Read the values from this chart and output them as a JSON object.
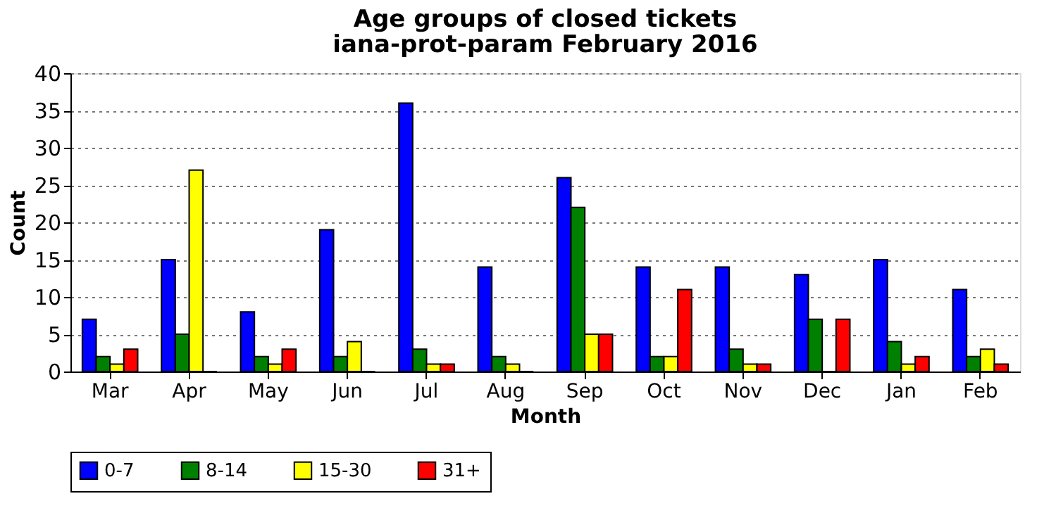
{
  "chart_data": {
    "type": "bar",
    "title": "Age groups of closed tickets",
    "subtitle": "iana-prot-param February 2016",
    "xlabel": "Month",
    "ylabel": "Count",
    "categories": [
      "Mar",
      "Apr",
      "May",
      "Jun",
      "Jul",
      "Aug",
      "Sep",
      "Oct",
      "Nov",
      "Dec",
      "Jan",
      "Feb"
    ],
    "series": [
      {
        "name": "0-7",
        "color": "#0000ff",
        "values": [
          7,
          15,
          8,
          19,
          36,
          14,
          26,
          14,
          14,
          13,
          15,
          11
        ]
      },
      {
        "name": "8-14",
        "color": "#008000",
        "values": [
          2,
          5,
          2,
          2,
          3,
          2,
          22,
          2,
          3,
          7,
          4,
          2
        ]
      },
      {
        "name": "15-30",
        "color": "#ffff00",
        "values": [
          1,
          27,
          1,
          4,
          1,
          1,
          5,
          2,
          1,
          0,
          1,
          3
        ]
      },
      {
        "name": "31+",
        "color": "#ff0000",
        "values": [
          3,
          0,
          3,
          0,
          1,
          0,
          5,
          11,
          1,
          7,
          2,
          1
        ]
      }
    ],
    "ylim": [
      0,
      40
    ],
    "yticks": [
      0,
      5,
      10,
      15,
      20,
      25,
      30,
      35,
      40
    ],
    "grid": "y",
    "legend": "bottom"
  }
}
